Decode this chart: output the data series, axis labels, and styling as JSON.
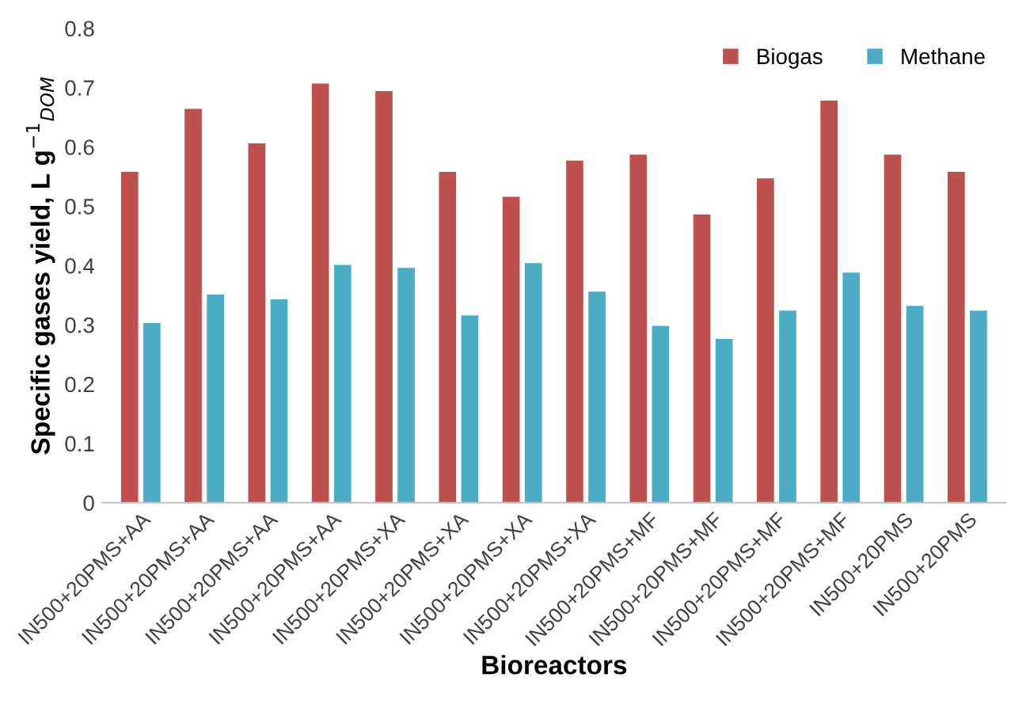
{
  "chart_data": {
    "type": "bar",
    "xlabel": "Bioreactors",
    "ylabel": "Specific gases yield, L g$^{−1}$$_{DOM}$",
    "categories": [
      "IN500+20PMS+AA",
      "IN500+20PMS+AA",
      "IN500+20PMS+AA",
      "IN500+20PMS+AA",
      "IN500+20PMS+XA",
      "IN500+20PMS+XA",
      "IN500+20PMS+XA",
      "IN500+20PMS+XA",
      "IN500+20PMS+MF",
      "IN500+20PMS+MF",
      "IN500+20PMS+MF",
      "IN500+20PMS+MF",
      "IN500+20PMS",
      "IN500+20PMS"
    ],
    "series": [
      {
        "name": "Biogas",
        "color": "#c0504d",
        "values": [
          0.558,
          0.664,
          0.606,
          0.707,
          0.694,
          0.558,
          0.516,
          0.577,
          0.587,
          0.486,
          0.547,
          0.678,
          0.587,
          0.558
        ]
      },
      {
        "name": "Methane",
        "color": "#4bacc6",
        "values": [
          0.303,
          0.351,
          0.343,
          0.401,
          0.396,
          0.316,
          0.404,
          0.356,
          0.298,
          0.276,
          0.324,
          0.388,
          0.332,
          0.324
        ]
      }
    ],
    "ylim": [
      0,
      0.8
    ],
    "yticks": [
      {
        "value": 0,
        "label": "0"
      },
      0.1,
      0.2,
      0.3,
      0.4,
      0.5,
      0.6,
      0.7,
      0.8
    ],
    "grid": false,
    "legend": "top right"
  }
}
